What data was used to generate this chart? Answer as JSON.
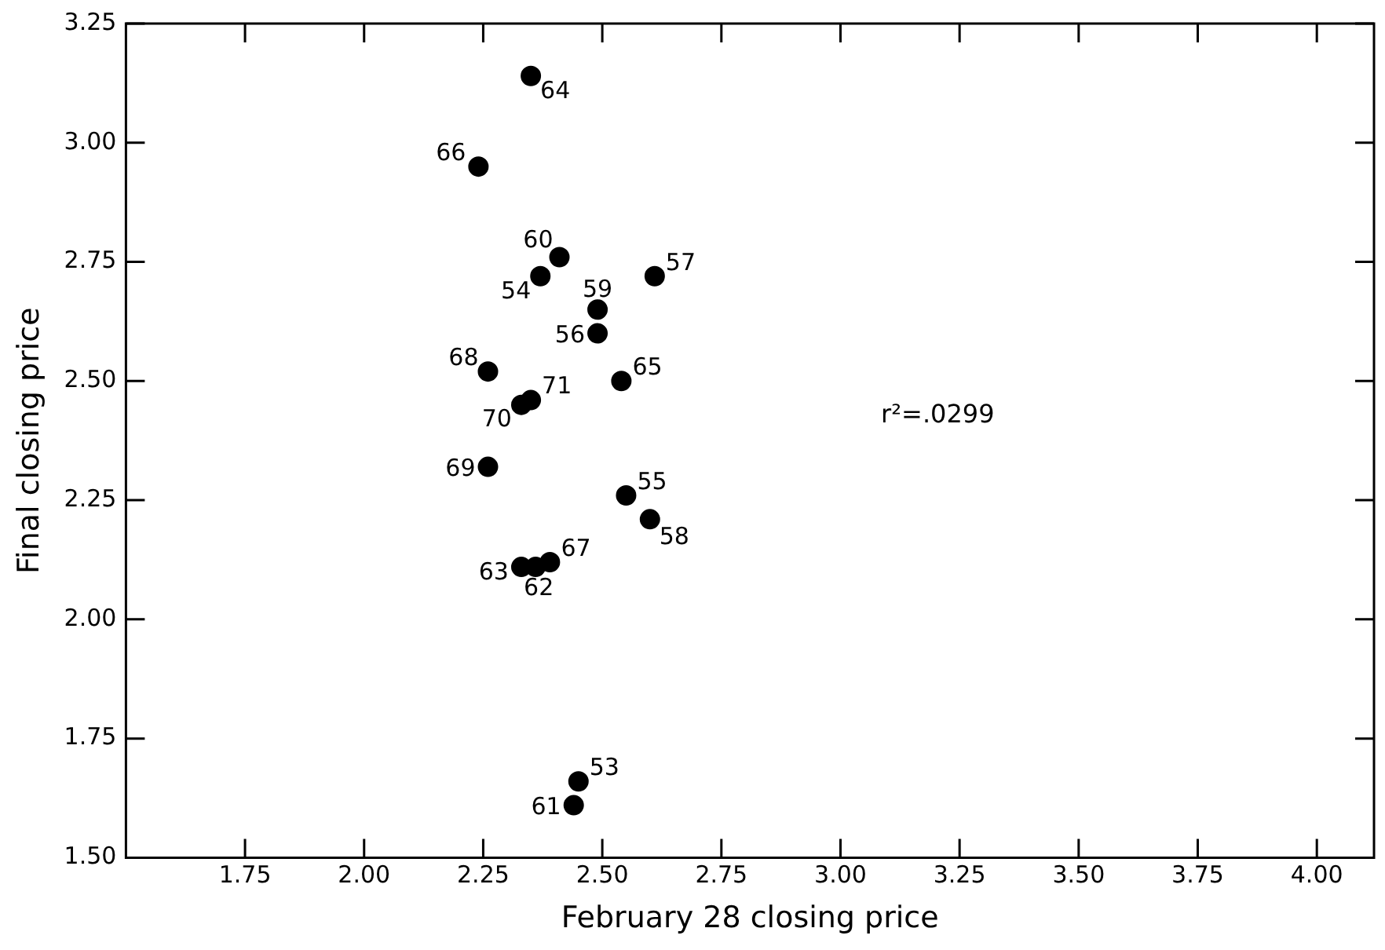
{
  "chart_data": {
    "type": "scatter",
    "xlabel": "February 28 closing price",
    "ylabel": "Final closing price",
    "x": [
      2.45,
      2.37,
      2.55,
      2.49,
      2.61,
      2.6,
      2.49,
      2.41,
      2.44,
      2.36,
      2.33,
      2.35,
      2.54,
      2.24,
      2.39,
      2.26,
      2.26,
      2.33,
      2.35
    ],
    "values": [
      1.66,
      2.72,
      2.26,
      2.6,
      2.72,
      2.21,
      2.65,
      2.76,
      1.61,
      2.11,
      2.11,
      3.14,
      2.5,
      2.95,
      2.12,
      2.52,
      2.32,
      2.45,
      2.46
    ],
    "color": "#000000",
    "marker": "circle",
    "xlim": [
      1.5,
      4.12
    ],
    "xticks": [
      {
        "value": 1.75,
        "label": "1.75"
      },
      {
        "value": 2,
        "label": "2.00"
      },
      {
        "value": 2.25,
        "label": "2.25"
      },
      {
        "value": 2.5,
        "label": "2.50"
      },
      {
        "value": 2.75,
        "label": "2.75"
      },
      {
        "value": 3,
        "label": "3.00"
      },
      {
        "value": 3.25,
        "label": "3.25"
      },
      {
        "value": 3.5,
        "label": "3.50"
      },
      {
        "value": 3.75,
        "label": "3.75"
      },
      {
        "value": 4,
        "label": "4.00"
      }
    ],
    "ylim": [
      1.5,
      3.25
    ],
    "yticks": [
      {
        "value": 1.5,
        "label": "1.50"
      },
      {
        "value": 1.75,
        "label": "1.75"
      },
      {
        "value": 2,
        "label": "2.00"
      },
      {
        "value": 2.25,
        "label": "2.25"
      },
      {
        "value": 2.5,
        "label": "2.50"
      },
      {
        "value": 2.75,
        "label": "2.75"
      },
      {
        "value": 3,
        "label": "3.00"
      },
      {
        "value": 3.25,
        "label": "3.25"
      }
    ],
    "annotations": [
      {
        "text": "53",
        "x": 2.45,
        "y": 1.66
      },
      {
        "text": "54",
        "x": 2.37,
        "y": 2.72
      },
      {
        "text": "55",
        "x": 2.55,
        "y": 2.26
      },
      {
        "text": "56",
        "x": 2.49,
        "y": 2.6
      },
      {
        "text": "57",
        "x": 2.61,
        "y": 2.72
      },
      {
        "text": "58",
        "x": 2.6,
        "y": 2.21
      },
      {
        "text": "59",
        "x": 2.49,
        "y": 2.65
      },
      {
        "text": "60",
        "x": 2.41,
        "y": 2.76
      },
      {
        "text": "61",
        "x": 2.44,
        "y": 1.61
      },
      {
        "text": "62",
        "x": 2.36,
        "y": 2.11
      },
      {
        "text": "63",
        "x": 2.33,
        "y": 2.11
      },
      {
        "text": "64",
        "x": 2.35,
        "y": 3.14
      },
      {
        "text": "65",
        "x": 2.54,
        "y": 2.5
      },
      {
        "text": "66",
        "x": 2.24,
        "y": 2.95
      },
      {
        "text": "67",
        "x": 2.39,
        "y": 2.12
      },
      {
        "text": "68",
        "x": 2.26,
        "y": 2.52
      },
      {
        "text": "69",
        "x": 2.26,
        "y": 2.32
      },
      {
        "text": "70",
        "x": 2.33,
        "y": 2.45
      },
      {
        "text": "71",
        "x": 2.35,
        "y": 2.46
      },
      "r²=.0299"
    ]
  }
}
